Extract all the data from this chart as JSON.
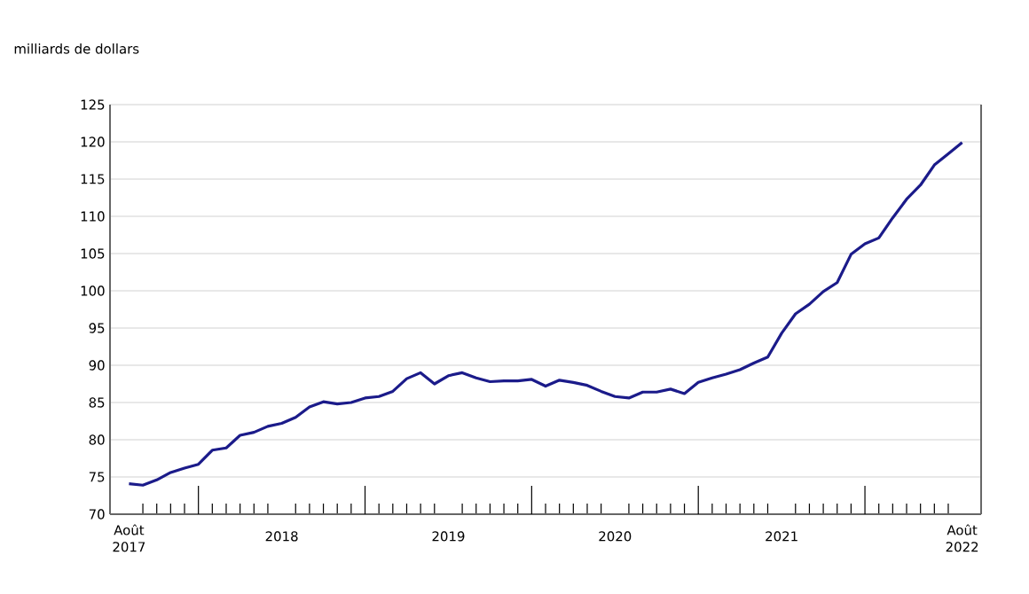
{
  "chart_data": {
    "type": "line",
    "ylabel": "milliards de dollars",
    "x": [
      "2017-08",
      "2017-09",
      "2017-10",
      "2017-11",
      "2017-12",
      "2018-01",
      "2018-02",
      "2018-03",
      "2018-04",
      "2018-05",
      "2018-06",
      "2018-07",
      "2018-08",
      "2018-09",
      "2018-10",
      "2018-11",
      "2018-12",
      "2019-01",
      "2019-02",
      "2019-03",
      "2019-04",
      "2019-05",
      "2019-06",
      "2019-07",
      "2019-08",
      "2019-09",
      "2019-10",
      "2019-11",
      "2019-12",
      "2020-01",
      "2020-02",
      "2020-03",
      "2020-04",
      "2020-05",
      "2020-06",
      "2020-07",
      "2020-08",
      "2020-09",
      "2020-10",
      "2020-11",
      "2020-12",
      "2021-01",
      "2021-02",
      "2021-03",
      "2021-04",
      "2021-05",
      "2021-06",
      "2021-07",
      "2021-08",
      "2021-09",
      "2021-10",
      "2021-11",
      "2021-12",
      "2022-01",
      "2022-02",
      "2022-03",
      "2022-04",
      "2022-05",
      "2022-06",
      "2022-07",
      "2022-08"
    ],
    "values": [
      74.1,
      73.9,
      74.6,
      75.6,
      76.2,
      76.7,
      78.6,
      78.9,
      80.6,
      81.0,
      81.8,
      82.2,
      83.0,
      84.4,
      85.1,
      84.8,
      85.0,
      85.6,
      85.8,
      86.5,
      88.2,
      89.0,
      87.5,
      88.6,
      89.0,
      88.3,
      87.8,
      87.9,
      87.9,
      88.1,
      87.2,
      88.0,
      87.7,
      87.3,
      86.5,
      85.8,
      85.6,
      86.4,
      86.4,
      86.8,
      86.2,
      87.7,
      88.3,
      88.8,
      89.4,
      90.3,
      91.1,
      94.3,
      96.9,
      98.2,
      99.9,
      101.1,
      104.9,
      106.3,
      107.1,
      109.8,
      112.3,
      114.2,
      116.9,
      118.4,
      119.9
    ],
    "color": "#1b1b8a",
    "line_style": "solid",
    "marker": "none",
    "grid": "y",
    "xlim": [
      "2017-06-20",
      "2022-09-12"
    ],
    "ylim": [
      70,
      125
    ],
    "yticks": [
      70,
      75,
      80,
      85,
      90,
      95,
      100,
      105,
      110,
      115,
      120,
      125
    ],
    "xticks": [
      {
        "value": "2017-08",
        "label": "Août 2017"
      },
      {
        "value": "2018-07",
        "label": "2018"
      },
      {
        "value": "2019-07",
        "label": "2019"
      },
      {
        "value": "2020-07",
        "label": "2020"
      },
      {
        "value": "2021-07",
        "label": "2021"
      },
      {
        "value": "2022-08",
        "label": "Août 2022"
      },
      {
        "value": "2017-09",
        "label": null
      },
      {
        "value": "2017-10",
        "label": null
      },
      {
        "value": "2017-11",
        "label": null
      },
      {
        "value": "2017-12",
        "label": null
      },
      {
        "value": "2018-01",
        "label": null
      },
      {
        "value": "2018-02",
        "label": null
      },
      {
        "value": "2018-03",
        "label": null
      },
      {
        "value": "2018-04",
        "label": null
      },
      {
        "value": "2018-05",
        "label": null
      },
      {
        "value": "2018-06",
        "label": null
      },
      {
        "value": "2018-08",
        "label": null
      },
      {
        "value": "2018-09",
        "label": null
      },
      {
        "value": "2018-10",
        "label": null
      },
      {
        "value": "2018-11",
        "label": null
      },
      {
        "value": "2018-12",
        "label": null
      },
      {
        "value": "2019-01",
        "label": null
      },
      {
        "value": "2019-02",
        "label": null
      },
      {
        "value": "2019-03",
        "label": null
      },
      {
        "value": "2019-04",
        "label": null
      },
      {
        "value": "2019-05",
        "label": null
      },
      {
        "value": "2019-06",
        "label": null
      },
      {
        "value": "2019-08",
        "label": null
      },
      {
        "value": "2019-09",
        "label": null
      },
      {
        "value": "2019-10",
        "label": null
      },
      {
        "value": "2019-11",
        "label": null
      },
      {
        "value": "2019-12",
        "label": null
      },
      {
        "value": "2020-01",
        "label": null
      },
      {
        "value": "2020-02",
        "label": null
      },
      {
        "value": "2020-03",
        "label": null
      },
      {
        "value": "2020-04",
        "label": null
      },
      {
        "value": "2020-05",
        "label": null
      },
      {
        "value": "2020-06",
        "label": null
      },
      {
        "value": "2020-08",
        "label": null
      },
      {
        "value": "2020-09",
        "label": null
      },
      {
        "value": "2020-10",
        "label": null
      },
      {
        "value": "2020-11",
        "label": null
      },
      {
        "value": "2020-12",
        "label": null
      },
      {
        "value": "2021-01",
        "label": null
      },
      {
        "value": "2021-02",
        "label": null
      },
      {
        "value": "2021-03",
        "label": null
      },
      {
        "value": "2021-04",
        "label": null
      },
      {
        "value": "2021-05",
        "label": null
      },
      {
        "value": "2021-06",
        "label": null
      },
      {
        "value": "2021-08",
        "label": null
      },
      {
        "value": "2021-09",
        "label": null
      },
      {
        "value": "2021-10",
        "label": null
      },
      {
        "value": "2021-11",
        "label": null
      },
      {
        "value": "2021-12",
        "label": null
      },
      {
        "value": "2022-01",
        "label": null
      },
      {
        "value": "2022-02",
        "label": null
      },
      {
        "value": "2022-03",
        "label": null
      },
      {
        "value": "2022-04",
        "label": null
      },
      {
        "value": "2022-05",
        "label": null
      },
      {
        "value": "2022-06",
        "label": null
      },
      {
        "value": "2022-07",
        "label": null
      }
    ]
  }
}
